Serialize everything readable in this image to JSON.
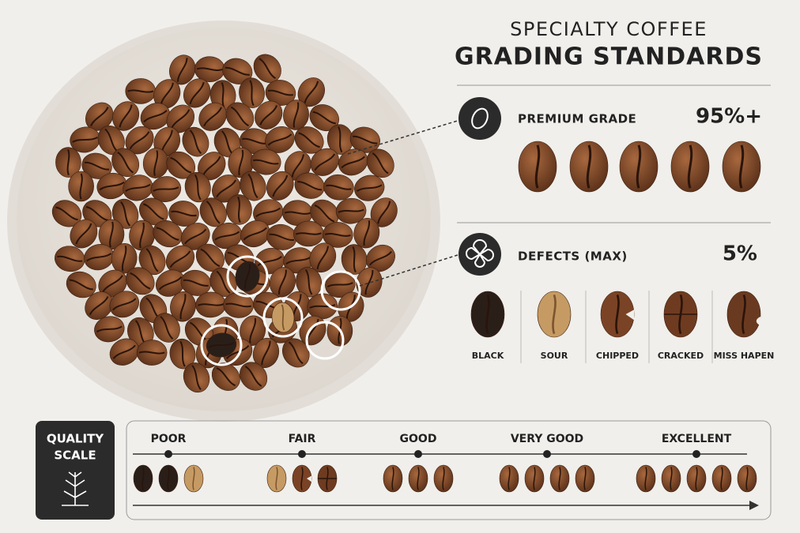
{
  "header": {
    "subtitle": "SPECIALTY COFFEE",
    "title": "GRADING STANDARDS"
  },
  "premium": {
    "label": "PREMIUM GRADE",
    "value": "95%+"
  },
  "defects": {
    "label": "DEFECTS (MAX)",
    "value": "5%",
    "types": [
      "BLACK",
      "SOUR",
      "CHIPPED",
      "CRACKED",
      "MISS HAPEN"
    ]
  },
  "quality_scale": {
    "title_lines": [
      "QUALITY",
      "SCALE"
    ],
    "levels": [
      "POOR",
      "FAIR",
      "GOOD",
      "VERY GOOD",
      "EXCELLENT"
    ]
  }
}
